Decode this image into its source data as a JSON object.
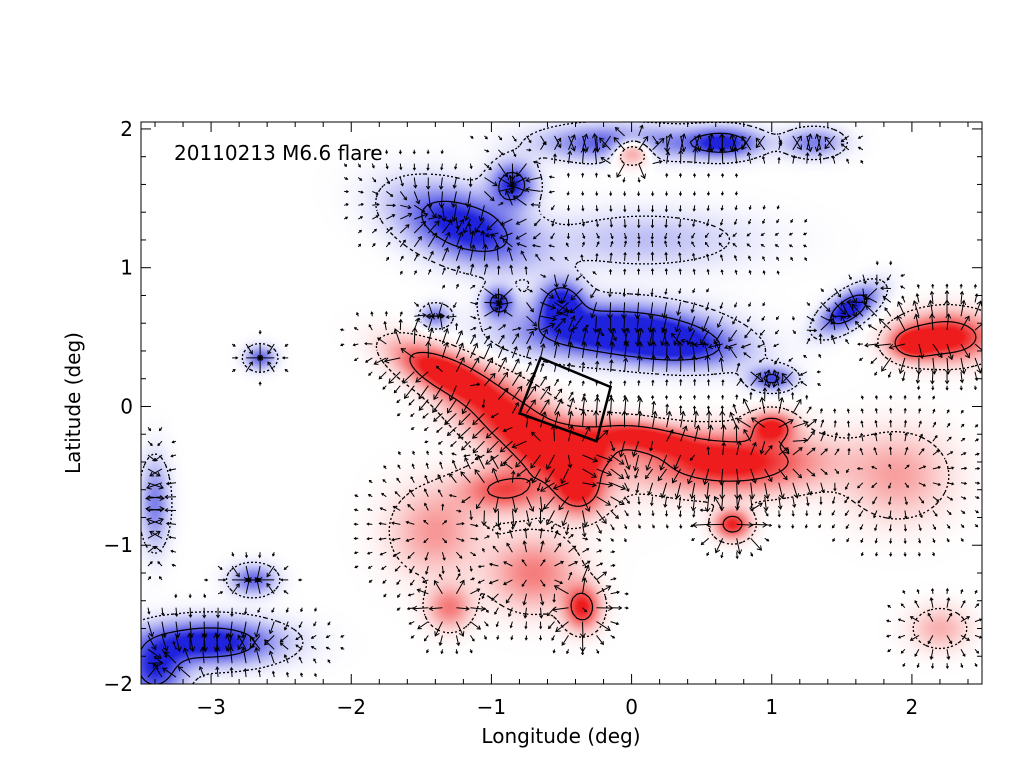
{
  "chart_data": {
    "type": "heatmap",
    "subtype": "magnetogram with horizontal field vectors",
    "annotation": "20110213 M6.6 flare",
    "xlabel": "Longitude (deg)",
    "ylabel": "Latitude (deg)",
    "xlim": [
      -3.5,
      2.5
    ],
    "ylim": [
      -2.0,
      2.05
    ],
    "xticks": [
      -3,
      -2,
      -1,
      0,
      1,
      2
    ],
    "xtick_labels": [
      "−3",
      "−2",
      "−1",
      "0",
      "1",
      "2"
    ],
    "yticks": [
      -2,
      -1,
      0,
      1,
      2
    ],
    "ytick_labels": [
      "−2",
      "−1",
      "0",
      "1",
      "2"
    ],
    "colors": {
      "positive": "#ee1c1c",
      "negative": "#1e22dd",
      "vector": "#000000"
    },
    "positive_regions": [
      {
        "x": -0.8,
        "y": -0.15,
        "rx": 0.55,
        "ry": 0.22,
        "rot": -35,
        "amp": 1.0
      },
      {
        "x": -1.35,
        "y": 0.25,
        "rx": 0.35,
        "ry": 0.13,
        "rot": -25,
        "amp": 0.95
      },
      {
        "x": -0.4,
        "y": -0.3,
        "rx": 0.3,
        "ry": 0.15,
        "rot": 0,
        "amp": 0.9
      },
      {
        "x": 0.7,
        "y": -0.4,
        "rx": 0.6,
        "ry": 0.2,
        "rot": 0,
        "amp": 1.0
      },
      {
        "x": 0.1,
        "y": -0.22,
        "rx": 0.35,
        "ry": 0.1,
        "rot": -10,
        "amp": 0.85
      },
      {
        "x": 1.0,
        "y": -0.15,
        "rx": 0.15,
        "ry": 0.1,
        "rot": 0,
        "amp": 0.85
      },
      {
        "x": 0.72,
        "y": -0.85,
        "rx": 0.12,
        "ry": 0.1,
        "rot": 0,
        "amp": 0.85
      },
      {
        "x": -0.38,
        "y": -0.6,
        "rx": 0.17,
        "ry": 0.18,
        "rot": 0,
        "amp": 0.8
      },
      {
        "x": -0.9,
        "y": -0.6,
        "rx": 0.3,
        "ry": 0.15,
        "rot": 0,
        "amp": 0.7
      },
      {
        "x": -0.35,
        "y": -1.45,
        "rx": 0.12,
        "ry": 0.15,
        "rot": 0,
        "amp": 0.85
      },
      {
        "x": -0.7,
        "y": -1.2,
        "rx": 0.3,
        "ry": 0.25,
        "rot": 0,
        "amp": 0.5
      },
      {
        "x": -1.4,
        "y": -0.9,
        "rx": 0.3,
        "ry": 0.3,
        "rot": 0,
        "amp": 0.4
      },
      {
        "x": -1.3,
        "y": -1.45,
        "rx": 0.15,
        "ry": 0.15,
        "rot": 0,
        "amp": 0.5
      },
      {
        "x": 2.25,
        "y": 0.5,
        "rx": 0.3,
        "ry": 0.16,
        "rot": 0,
        "amp": 1.0
      },
      {
        "x": 2.0,
        "y": 0.45,
        "rx": 0.15,
        "ry": 0.1,
        "rot": 0,
        "amp": 0.8
      },
      {
        "x": 0.0,
        "y": 1.85,
        "rx": 0.15,
        "ry": 0.1,
        "rot": 0,
        "amp": 0.8
      },
      {
        "x": 1.9,
        "y": -0.5,
        "rx": 0.35,
        "ry": 0.3,
        "rot": 0,
        "amp": 0.35
      },
      {
        "x": 2.2,
        "y": -1.6,
        "rx": 0.2,
        "ry": 0.15,
        "rot": 0,
        "amp": 0.3
      }
    ],
    "negative_regions": [
      {
        "x": -1.2,
        "y": 1.3,
        "rx": 0.45,
        "ry": 0.22,
        "rot": -20,
        "amp": 1.0
      },
      {
        "x": -0.85,
        "y": 1.6,
        "rx": 0.15,
        "ry": 0.15,
        "rot": 0,
        "amp": 0.85
      },
      {
        "x": -0.95,
        "y": 0.75,
        "rx": 0.1,
        "ry": 0.1,
        "rot": 0,
        "amp": 0.8
      },
      {
        "x": -0.2,
        "y": 0.55,
        "rx": 0.6,
        "ry": 0.18,
        "rot": 0,
        "amp": 1.0
      },
      {
        "x": 0.3,
        "y": 0.45,
        "rx": 0.45,
        "ry": 0.15,
        "rot": -5,
        "amp": 0.9
      },
      {
        "x": -0.5,
        "y": 0.75,
        "rx": 0.15,
        "ry": 0.15,
        "rot": 0,
        "amp": 0.9
      },
      {
        "x": 1.0,
        "y": 0.2,
        "rx": 0.15,
        "ry": 0.08,
        "rot": 0,
        "amp": 0.7
      },
      {
        "x": 1.55,
        "y": 0.7,
        "rx": 0.22,
        "ry": 0.1,
        "rot": 35,
        "amp": 1.0
      },
      {
        "x": -0.1,
        "y": 1.9,
        "rx": 0.5,
        "ry": 0.12,
        "rot": 0,
        "amp": 0.7
      },
      {
        "x": 0.65,
        "y": 1.9,
        "rx": 0.25,
        "ry": 0.1,
        "rot": 0,
        "amp": 0.9
      },
      {
        "x": 1.3,
        "y": 1.9,
        "rx": 0.2,
        "ry": 0.1,
        "rot": 0,
        "amp": 0.5
      },
      {
        "x": -3.0,
        "y": -1.7,
        "rx": 0.45,
        "ry": 0.15,
        "rot": 0,
        "amp": 1.0
      },
      {
        "x": -3.4,
        "y": -1.9,
        "rx": 0.2,
        "ry": 0.2,
        "rot": 0,
        "amp": 0.8
      },
      {
        "x": -2.7,
        "y": -1.25,
        "rx": 0.15,
        "ry": 0.1,
        "rot": 0,
        "amp": 0.6
      },
      {
        "x": -3.4,
        "y": -0.7,
        "rx": 0.1,
        "ry": 0.3,
        "rot": 0,
        "amp": 0.5
      },
      {
        "x": -2.65,
        "y": 0.35,
        "rx": 0.1,
        "ry": 0.08,
        "rot": 0,
        "amp": 0.6
      },
      {
        "x": 0.1,
        "y": 1.2,
        "rx": 0.7,
        "ry": 0.2,
        "rot": 0,
        "amp": 0.25
      },
      {
        "x": -1.4,
        "y": 0.65,
        "rx": 0.1,
        "ry": 0.08,
        "rot": 0,
        "amp": 0.5
      }
    ],
    "contour_threshold": 0.62,
    "flare_box_corners": [
      [
        -0.65,
        0.35
      ],
      [
        -0.15,
        0.14
      ],
      [
        -0.25,
        -0.25
      ],
      [
        -0.8,
        -0.05
      ]
    ]
  }
}
